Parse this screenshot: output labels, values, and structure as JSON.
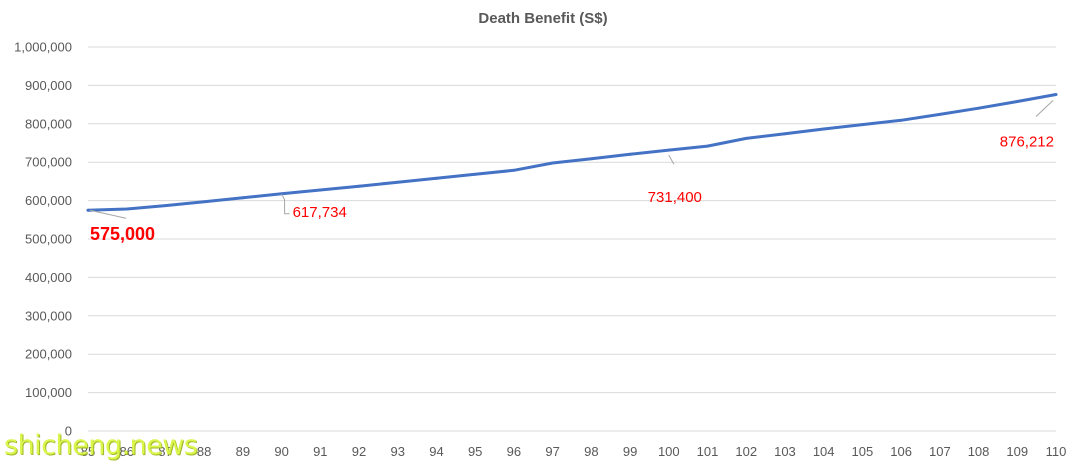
{
  "chart_data": {
    "type": "line",
    "title": "Death Benefit (S$)",
    "xlabel": "",
    "ylabel": "",
    "ylim": [
      0,
      1000000
    ],
    "yticks": [
      "0",
      "100,000",
      "200,000",
      "300,000",
      "400,000",
      "500,000",
      "600,000",
      "700,000",
      "800,000",
      "900,000",
      "1,000,000"
    ],
    "categories": [
      "85",
      "86",
      "87",
      "88",
      "89",
      "90",
      "91",
      "92",
      "93",
      "94",
      "95",
      "96",
      "97",
      "98",
      "99",
      "100",
      "101",
      "102",
      "103",
      "104",
      "105",
      "106",
      "107",
      "108",
      "109",
      "110"
    ],
    "series": [
      {
        "values": [
          575000,
          578000,
          587000,
          597000,
          607500,
          617734,
          627500,
          637500,
          648000,
          658000,
          668500,
          679000,
          698000,
          709000,
          720500,
          731400,
          742000,
          762000,
          774000,
          786500,
          798000,
          809000,
          824500,
          840500,
          858000,
          876212
        ],
        "color": "#4472c4"
      }
    ],
    "data_labels": [
      {
        "index": 0,
        "text": "575,000",
        "size": "large"
      },
      {
        "index": 5,
        "text": "617,734",
        "size": "normal"
      },
      {
        "index": 15,
        "text": "731,400",
        "size": "normal"
      },
      {
        "index": 25,
        "text": "876,212",
        "size": "normal"
      }
    ],
    "grid": true,
    "legend": "none",
    "label_color": "#ff0000"
  },
  "watermark": {
    "text": "shicheng.news"
  }
}
